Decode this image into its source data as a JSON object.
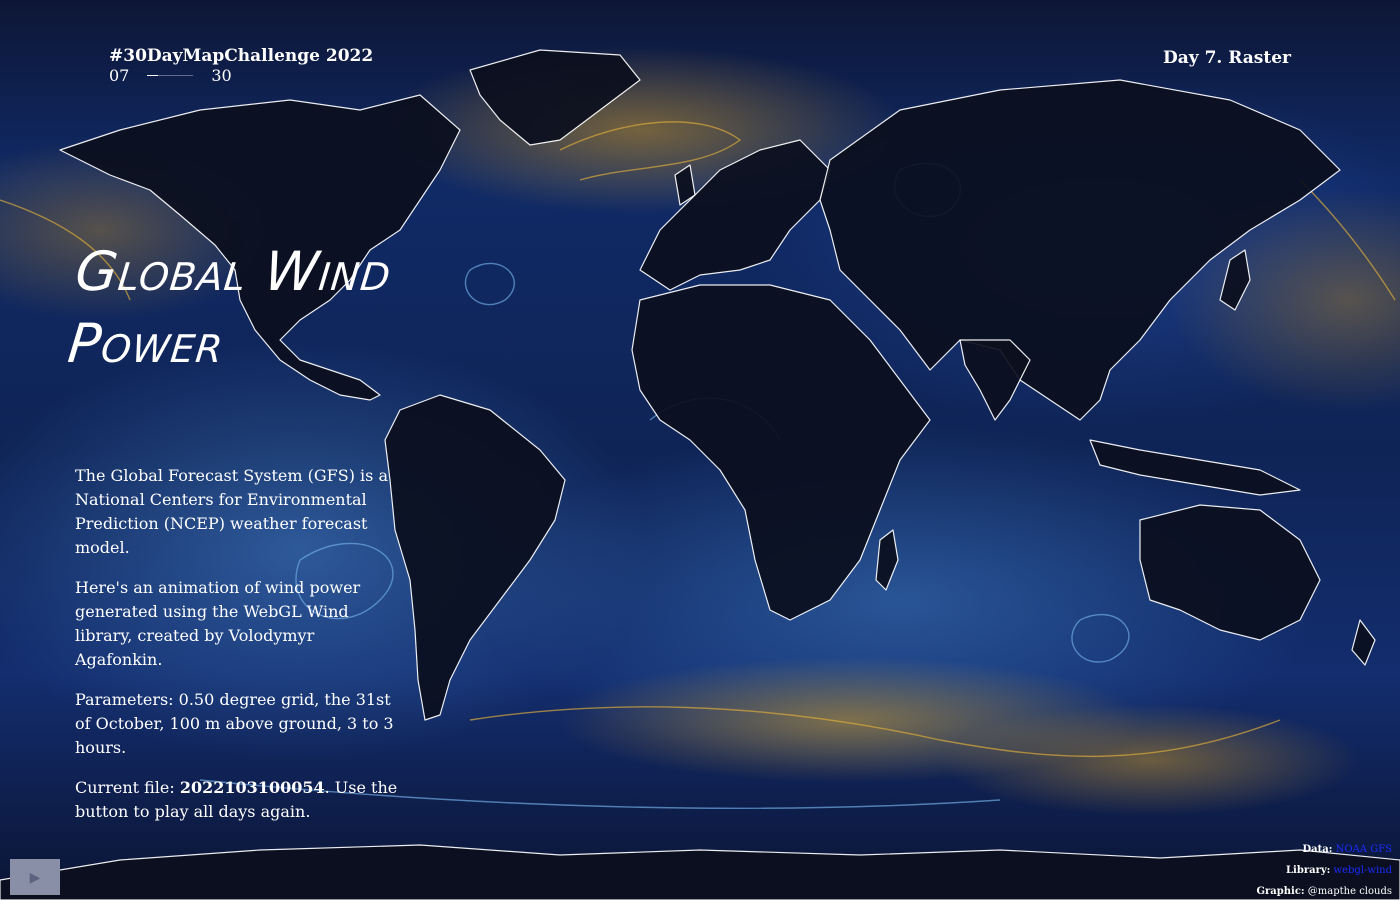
{
  "header": {
    "challenge": "#30DayMapChallenge 2022",
    "day_current": "07",
    "day_total": "30",
    "progress_fraction": 0.233,
    "day_label": "Day 7. Raster"
  },
  "title": "Global Wind Power",
  "description": {
    "p1": "The Global Forecast System (GFS) is a National Centers for Environmental Prediction (NCEP) weather forecast model.",
    "p2": "Here's an animation of wind power generated using the WebGL Wind library, created by Volodymyr Agafonkin.",
    "p3": "Parameters: 0.50 degree grid, the 31st of October, 100 m above ground, 3 to 3 hours.",
    "p4_prefix": "Current file: ",
    "p4_file": "2022103100054",
    "p4_suffix": ". Use the button to play all days again."
  },
  "controls": {
    "play_icon": "▶",
    "play_icon_name": "play-icon"
  },
  "credits": {
    "data_label": "Data:",
    "data_value": "NOAA GFS",
    "library_label": "Library:",
    "library_value": "webgl-wind",
    "graphic_label": "Graphic:",
    "graphic_value": "@mapthe clouds"
  },
  "colors": {
    "ocean_dark": "#0b1024",
    "wind_blue": "#4a86c8",
    "wind_gold": "#d7a83a",
    "land": "#0b0f1e",
    "coastline": "#ffffff",
    "link": "#1b2cff"
  }
}
